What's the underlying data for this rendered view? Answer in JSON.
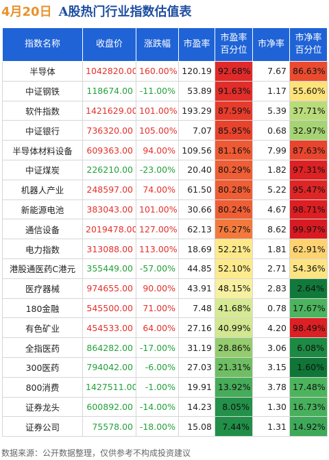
{
  "title": {
    "date": "4月20日",
    "text": "A股热门行业指数估值表"
  },
  "headers": [
    "指数名称",
    "收盘价",
    "涨跌幅",
    "市盈率",
    "市盈率\n百分位",
    "市净率",
    "市净率\n百分位"
  ],
  "colors": {
    "header": "#1f63d6",
    "up": "#e3302a",
    "down": "#22a13a",
    "date": "#e8912d",
    "title": "#1f4fa0"
  },
  "rows": [
    {
      "name": "半导体",
      "close": "1042820.00",
      "chg": "160.00%",
      "pe": "120.19",
      "pe_pct": "92.68%",
      "pb": "7.67",
      "pb_pct": "86.63%",
      "dir": "up",
      "pe_color": "#e02a2a",
      "pb_color": "#ea4b2f"
    },
    {
      "name": "中证钢铁",
      "close": "118674.00",
      "chg": "-11.00%",
      "pe": "53.89",
      "pe_pct": "91.63%",
      "pb": "1.17",
      "pb_pct": "55.60%",
      "dir": "down",
      "pe_color": "#e12e2a",
      "pb_color": "#fce27a"
    },
    {
      "name": "软件指数",
      "close": "1421629.00",
      "chg": "101.00%",
      "pe": "193.29",
      "pe_pct": "87.59%",
      "pb": "5.39",
      "pb_pct": "37.71%",
      "dir": "up",
      "pe_color": "#e63c2c",
      "pb_color": "#b9dc7a"
    },
    {
      "name": "中证银行",
      "close": "736320.00",
      "chg": "105.00%",
      "pe": "7.07",
      "pe_pct": "85.95%",
      "pb": "0.68",
      "pb_pct": "32.97%",
      "dir": "up",
      "pe_color": "#e8432d",
      "pb_color": "#a6d474"
    },
    {
      "name": "半导体材料设备",
      "close": "609363.00",
      "chg": "94.00%",
      "pe": "109.56",
      "pe_pct": "81.16%",
      "pb": "7.99",
      "pb_pct": "87.63%",
      "dir": "up",
      "pe_color": "#ee5a34",
      "pb_color": "#e8452e"
    },
    {
      "name": "中证煤炭",
      "close": "226210.00",
      "chg": "-23.00%",
      "pe": "20.40",
      "pe_pct": "80.29%",
      "pb": "1.82",
      "pb_pct": "97.31%",
      "dir": "down",
      "pe_color": "#ef5e35",
      "pb_color": "#dd2224"
    },
    {
      "name": "机器人产业",
      "close": "248597.00",
      "chg": "74.00%",
      "pe": "61.50",
      "pe_pct": "80.28%",
      "pb": "5.22",
      "pb_pct": "95.47%",
      "dir": "up",
      "pe_color": "#ef5e35",
      "pb_color": "#de2626"
    },
    {
      "name": "新能源电池",
      "close": "383043.00",
      "chg": "101.00%",
      "pe": "30.66",
      "pe_pct": "80.24%",
      "pb": "4.67",
      "pb_pct": "98.71%",
      "dir": "up",
      "pe_color": "#ef5f35",
      "pb_color": "#dc1f23"
    },
    {
      "name": "通信设备",
      "close": "2019478.00",
      "chg": "127.00%",
      "pe": "62.13",
      "pe_pct": "76.27%",
      "pb": "8.62",
      "pb_pct": "99.97%",
      "dir": "up",
      "pe_color": "#f37a3c",
      "pb_color": "#d81b22"
    },
    {
      "name": "电力指数",
      "close": "313088.00",
      "chg": "113.00%",
      "pe": "18.69",
      "pe_pct": "52.21%",
      "pb": "1.81",
      "pb_pct": "62.91%",
      "dir": "up",
      "pe_color": "#fde98a",
      "pb_color": "#fdd270"
    },
    {
      "name": "港股通医药C港元",
      "close": "355449.00",
      "chg": "-57.00%",
      "pe": "44.85",
      "pe_pct": "52.10%",
      "pb": "2.71",
      "pb_pct": "54.36%",
      "dir": "down",
      "pe_color": "#fdea8c",
      "pb_color": "#fde482"
    },
    {
      "name": "医疗器械",
      "close": "974655.00",
      "chg": "90.00%",
      "pe": "43.91",
      "pe_pct": "48.15%",
      "pb": "2.83",
      "pb_pct": "2.64%",
      "dir": "up",
      "pe_color": "#f6f0a0",
      "pb_color": "#117a3a"
    },
    {
      "name": "180金融",
      "close": "545500.00",
      "chg": "71.00%",
      "pe": "7.48",
      "pe_pct": "41.68%",
      "pb": "0.78",
      "pb_pct": "17.67%",
      "dir": "up",
      "pe_color": "#d6e993",
      "pb_color": "#4cb45e"
    },
    {
      "name": "有色矿业",
      "close": "454533.00",
      "chg": "64.00%",
      "pe": "27.16",
      "pe_pct": "40.99%",
      "pb": "4.20",
      "pb_pct": "98.49%",
      "dir": "up",
      "pe_color": "#d2e790",
      "pb_color": "#dc2024"
    },
    {
      "name": "全指医药",
      "close": "864282.00",
      "chg": "-17.00%",
      "pe": "31.19",
      "pe_pct": "28.86%",
      "pb": "3.06",
      "pb_pct": "6.08%",
      "dir": "down",
      "pe_color": "#94cc6e",
      "pb_color": "#1d8a43"
    },
    {
      "name": "300医药",
      "close": "794042.00",
      "chg": "-6.00%",
      "pe": "27.03",
      "pe_pct": "21.31%",
      "pb": "3.15",
      "pb_pct": "1.60%",
      "dir": "down",
      "pe_color": "#6fbe64",
      "pb_color": "#0f7637"
    },
    {
      "name": "800消费",
      "close": "1427511.00",
      "chg": "-1.00%",
      "pe": "19.91",
      "pe_pct": "13.92%",
      "pb": "3.78",
      "pb_pct": "17.48%",
      "dir": "down",
      "pe_color": "#46ac59",
      "pb_color": "#4db45e"
    },
    {
      "name": "证券龙头",
      "close": "600892.00",
      "chg": "-14.00%",
      "pe": "14.23",
      "pe_pct": "8.05%",
      "pb": "1.30",
      "pb_pct": "16.73%",
      "dir": "down",
      "pe_color": "#23914a",
      "pb_color": "#48b05c"
    },
    {
      "name": "证券公司",
      "close": "75578.00",
      "chg": "-18.00%",
      "pe": "15.08",
      "pe_pct": "7.44%",
      "pb": "1.31",
      "pb_pct": "14.92%",
      "dir": "down",
      "pe_color": "#218f48",
      "pb_color": "#3fa95a"
    }
  ],
  "footer": "数据来源：公开数据整理，仅供参考不构成投资建议"
}
